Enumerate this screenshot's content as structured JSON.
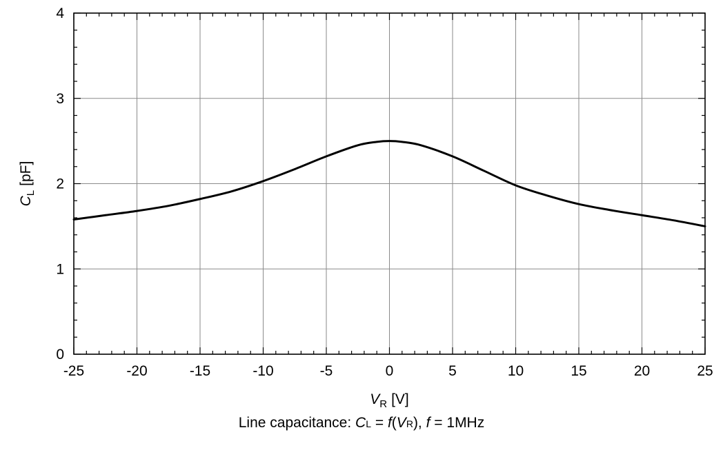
{
  "chart_data": {
    "type": "line",
    "title": "",
    "xlabel": {
      "symbol": "V",
      "subscript": "R",
      "unit": "[V]"
    },
    "ylabel": {
      "symbol": "C",
      "subscript": "L",
      "unit": "[pF]"
    },
    "xlim": [
      -25,
      25
    ],
    "ylim": [
      0,
      4
    ],
    "xticks": [
      -25,
      -20,
      -15,
      -10,
      -5,
      0,
      5,
      10,
      15,
      20,
      25
    ],
    "xtick_labels": [
      "-25",
      "-20",
      "-15",
      "-10",
      "-5",
      "0",
      "5",
      "10",
      "15",
      "20",
      "25"
    ],
    "yticks": [
      0,
      1,
      2,
      3,
      4
    ],
    "ytick_labels": [
      "0",
      "1",
      "2",
      "3",
      "4"
    ],
    "minor_x_step": 1,
    "minor_y_step": 0.2,
    "grid": true,
    "series": [
      {
        "color": "#000000",
        "x": [
          -25,
          -22.5,
          -20,
          -17.5,
          -15,
          -12.5,
          -10,
          -7.5,
          -5,
          -2.5,
          -1,
          0,
          1,
          2.5,
          5,
          7.5,
          10,
          12.5,
          15,
          17.5,
          20,
          22.5,
          25
        ],
        "y": [
          1.58,
          1.63,
          1.68,
          1.74,
          1.82,
          1.91,
          2.03,
          2.17,
          2.32,
          2.45,
          2.49,
          2.5,
          2.49,
          2.45,
          2.32,
          2.15,
          1.98,
          1.86,
          1.76,
          1.69,
          1.63,
          1.57,
          1.5
        ]
      }
    ]
  },
  "caption": {
    "prefix": "Line capacitance: ",
    "c_symbol": "C",
    "c_sub": "L",
    "eq1": " = ",
    "f_symbol": "f",
    "open": "(",
    "v_symbol": "V",
    "v_sub": "R",
    "close": "), ",
    "f2_symbol": "f",
    "eq2": " = 1MHz"
  }
}
